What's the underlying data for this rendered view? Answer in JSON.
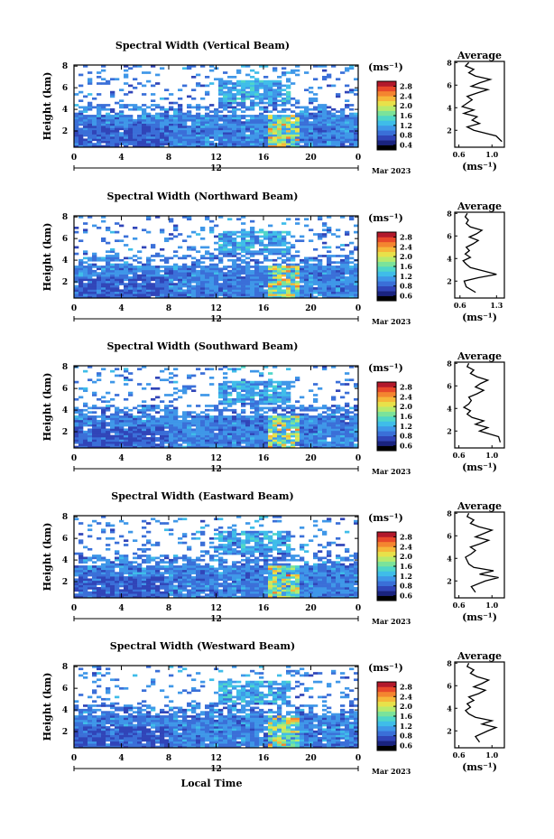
{
  "figure": {
    "xlabel": "Local Time",
    "month_label": "Mar 2023",
    "day_label": "12",
    "colorbar_unit": "(ms⁻¹)",
    "average_title": "Average",
    "average_unit": "(ms⁻¹)"
  },
  "colors": {
    "colormap": [
      "#000000",
      "#1a237e",
      "#3045b8",
      "#3a6fd8",
      "#3f97e8",
      "#3fbde9",
      "#4fd6c8",
      "#7be39a",
      "#b8ea6c",
      "#e8e14a",
      "#f6b73a",
      "#f48530",
      "#e8482a",
      "#b2182b"
    ]
  },
  "chart_data": [
    {
      "type": "heatmap",
      "title": "Spectral Width (Vertical Beam)",
      "xlabel": "",
      "ylabel": "Height (km)",
      "x_ticks": [
        "0",
        "4",
        "8",
        "12",
        "16",
        "20",
        "0"
      ],
      "y_ticks": [
        "2",
        "4",
        "6",
        "8"
      ],
      "xlim": [
        0,
        24
      ],
      "ylim": [
        0.5,
        8.1
      ],
      "colorbar_ticks": [
        "0.4",
        "0.8",
        "1.2",
        "1.6",
        "2.0",
        "2.4",
        "2.8"
      ],
      "colorbar_range": [
        0.2,
        3.0
      ],
      "average_profile": {
        "title": "Average",
        "x_ticks": [
          "0.6",
          "1.0"
        ],
        "xlim": [
          0.55,
          1.15
        ],
        "y_ticks": [
          "2",
          "4",
          "6",
          "8"
        ],
        "heights": [
          1.0,
          1.5,
          2.0,
          2.3,
          2.6,
          2.9,
          3.2,
          3.5,
          3.8,
          4.1,
          4.4,
          4.7,
          5.0,
          5.3,
          5.6,
          5.9,
          6.2,
          6.5,
          6.8,
          7.1,
          7.4,
          7.7,
          8.0
        ],
        "values": [
          1.12,
          1.05,
          0.78,
          0.7,
          0.85,
          0.76,
          0.82,
          0.66,
          0.78,
          0.64,
          0.7,
          0.76,
          0.7,
          0.82,
          0.95,
          0.75,
          0.85,
          0.98,
          0.8,
          0.72,
          0.78,
          0.68,
          0.72
        ]
      }
    },
    {
      "type": "heatmap",
      "title": "Spectral Width (Northward Beam)",
      "xlabel": "",
      "ylabel": "Height (km)",
      "x_ticks": [
        "0",
        "4",
        "8",
        "12",
        "16",
        "20",
        "0"
      ],
      "y_ticks": [
        "2",
        "4",
        "6",
        "8"
      ],
      "xlim": [
        0,
        24
      ],
      "ylim": [
        0.5,
        8.1
      ],
      "colorbar_ticks": [
        "0.6",
        "0.8",
        "1.2",
        "1.6",
        "2.0",
        "2.4",
        "2.8"
      ],
      "colorbar_range": [
        0.2,
        3.0
      ],
      "average_profile": {
        "title": "Average",
        "x_ticks": [
          "0.6",
          "1.3"
        ],
        "xlim": [
          0.5,
          1.45
        ],
        "y_ticks": [
          "2",
          "4",
          "6",
          "8"
        ],
        "heights": [
          1.0,
          1.5,
          2.0,
          2.3,
          2.6,
          2.9,
          3.2,
          3.5,
          3.8,
          4.1,
          4.4,
          4.7,
          5.0,
          5.3,
          5.6,
          5.9,
          6.2,
          6.5,
          6.8,
          7.1,
          7.4,
          7.7,
          8.0
        ],
        "values": [
          0.9,
          0.72,
          0.68,
          0.95,
          1.3,
          1.05,
          0.8,
          0.72,
          0.66,
          0.8,
          0.7,
          0.78,
          0.72,
          0.85,
          0.95,
          0.78,
          0.92,
          1.02,
          0.8,
          0.72,
          0.76,
          0.7,
          0.74
        ]
      }
    },
    {
      "type": "heatmap",
      "title": "Spectral Width (Southward Beam)",
      "xlabel": "",
      "ylabel": "Height (km)",
      "x_ticks": [
        "0",
        "4",
        "8",
        "12",
        "16",
        "20",
        "0"
      ],
      "y_ticks": [
        "2",
        "4",
        "6",
        "8"
      ],
      "xlim": [
        0,
        24
      ],
      "ylim": [
        0.5,
        8.1
      ],
      "colorbar_ticks": [
        "0.6",
        "0.8",
        "1.2",
        "1.6",
        "2.0",
        "2.4",
        "2.8"
      ],
      "colorbar_range": [
        0.2,
        3.0
      ],
      "average_profile": {
        "title": "Average",
        "x_ticks": [
          "0.6",
          "1.0"
        ],
        "xlim": [
          0.55,
          1.15
        ],
        "y_ticks": [
          "2",
          "4",
          "6",
          "8"
        ],
        "heights": [
          1.0,
          1.5,
          2.0,
          2.3,
          2.6,
          2.9,
          3.2,
          3.5,
          3.8,
          4.1,
          4.4,
          4.7,
          5.0,
          5.3,
          5.6,
          5.9,
          6.2,
          6.5,
          6.8,
          7.1,
          7.4,
          7.7,
          8.0
        ],
        "values": [
          1.1,
          1.08,
          0.85,
          0.95,
          0.8,
          0.9,
          0.76,
          0.7,
          0.74,
          0.66,
          0.72,
          0.75,
          0.72,
          0.82,
          0.9,
          0.8,
          0.86,
          0.95,
          0.82,
          0.74,
          0.78,
          0.7,
          0.72
        ]
      }
    },
    {
      "type": "heatmap",
      "title": "Spectral Width (Eastward Beam)",
      "xlabel": "",
      "ylabel": "Height (km)",
      "x_ticks": [
        "0",
        "4",
        "8",
        "12",
        "16",
        "20",
        "0"
      ],
      "y_ticks": [
        "2",
        "4",
        "6",
        "8"
      ],
      "xlim": [
        0,
        24
      ],
      "ylim": [
        0.5,
        8.1
      ],
      "colorbar_ticks": [
        "0.6",
        "0.8",
        "1.2",
        "1.6",
        "2.0",
        "2.4",
        "2.8"
      ],
      "colorbar_range": [
        0.2,
        3.0
      ],
      "average_profile": {
        "title": "Average",
        "x_ticks": [
          "0.6",
          "1.0"
        ],
        "xlim": [
          0.55,
          1.15
        ],
        "y_ticks": [
          "2",
          "4",
          "6",
          "8"
        ],
        "heights": [
          1.0,
          1.5,
          2.0,
          2.3,
          2.6,
          2.9,
          3.2,
          3.5,
          3.8,
          4.1,
          4.4,
          4.7,
          5.0,
          5.3,
          5.6,
          5.9,
          6.2,
          6.5,
          6.8,
          7.1,
          7.4,
          7.7,
          8.0
        ],
        "values": [
          0.8,
          0.75,
          0.92,
          1.08,
          0.85,
          1.02,
          0.78,
          0.72,
          0.7,
          0.68,
          0.75,
          0.8,
          0.74,
          0.86,
          0.96,
          0.8,
          0.9,
          1.0,
          0.84,
          0.74,
          0.78,
          0.7,
          0.72
        ]
      }
    },
    {
      "type": "heatmap",
      "title": "Spectral Width (Westward Beam)",
      "xlabel": "Local Time",
      "ylabel": "Height (km)",
      "x_ticks": [
        "0",
        "4",
        "8",
        "12",
        "16",
        "20",
        "0"
      ],
      "y_ticks": [
        "2",
        "4",
        "6",
        "8"
      ],
      "xlim": [
        0,
        24
      ],
      "ylim": [
        0.5,
        8.1
      ],
      "colorbar_ticks": [
        "0.6",
        "0.8",
        "1.2",
        "1.6",
        "2.0",
        "2.4",
        "2.8"
      ],
      "colorbar_range": [
        0.2,
        3.0
      ],
      "average_profile": {
        "title": "Average",
        "x_ticks": [
          "0.6",
          "1.0"
        ],
        "xlim": [
          0.55,
          1.15
        ],
        "y_ticks": [
          "2",
          "4",
          "6",
          "8"
        ],
        "heights": [
          1.0,
          1.5,
          2.0,
          2.3,
          2.6,
          2.9,
          3.2,
          3.5,
          3.8,
          4.1,
          4.4,
          4.7,
          5.0,
          5.3,
          5.6,
          5.9,
          6.2,
          6.5,
          6.8,
          7.1,
          7.4,
          7.7,
          8.0
        ],
        "values": [
          0.85,
          0.8,
          0.95,
          1.05,
          0.88,
          1.0,
          0.8,
          0.72,
          0.68,
          0.74,
          0.7,
          0.78,
          0.72,
          0.84,
          0.92,
          0.78,
          0.88,
          0.96,
          0.82,
          0.74,
          0.78,
          0.7,
          0.72
        ]
      }
    }
  ]
}
